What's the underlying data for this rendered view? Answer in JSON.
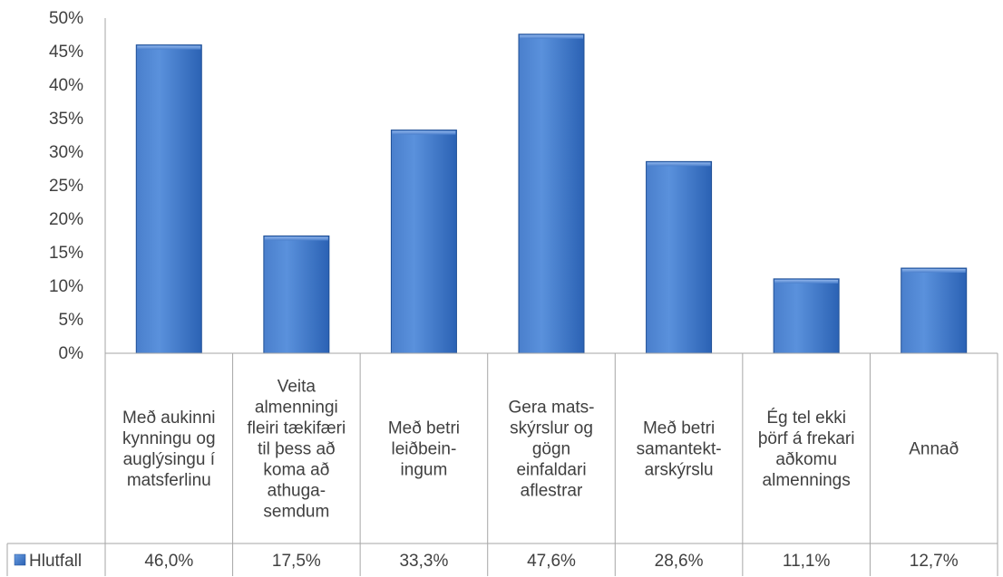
{
  "chart_data": {
    "type": "bar",
    "categories": [
      "Með aukinni kynningu og auglýsingu í matsferlinu",
      "Veita almenningi fleiri tækifæri til þess að koma að athuga-semdum",
      "Með betri leiðbein-ingum",
      "Gera mats-skýrslur og gögn einfaldari aflestrar",
      "Með betri samantekt-arskýrslu",
      "Ég tel ekki þörf á frekari aðkomu almennings",
      "Annað"
    ],
    "category_lines": [
      [
        "Með aukinni",
        "kynningu og",
        "auglýsingu í",
        "matsferlinu"
      ],
      [
        "Veita",
        "almenningi",
        "fleiri tækifæri",
        "til þess að",
        "koma að",
        "athuga-",
        "semdum"
      ],
      [
        "Með betri",
        "leiðbein-",
        "ingum"
      ],
      [
        "Gera mats-",
        "skýrslur og",
        "gögn",
        "einfaldari",
        "aflestrar"
      ],
      [
        "Með betri",
        "samantekt-",
        "arskýrslu"
      ],
      [
        "Ég tel ekki",
        "þörf á frekari",
        "aðkomu",
        "almennings"
      ],
      [
        "Annað"
      ]
    ],
    "series": [
      {
        "name": "Hlutfall",
        "values": [
          46.0,
          17.5,
          33.3,
          47.6,
          28.6,
          11.1,
          12.7
        ],
        "labels": [
          "46,0%",
          "17,5%",
          "33,3%",
          "47,6%",
          "28,6%",
          "11,1%",
          "12,7%"
        ]
      }
    ],
    "yticks": [
      "0%",
      "5%",
      "10%",
      "15%",
      "20%",
      "25%",
      "30%",
      "35%",
      "40%",
      "45%",
      "50%"
    ],
    "ylim": [
      0,
      50
    ],
    "grid": false,
    "legend": "data-table-left",
    "title": "",
    "xlabel": "",
    "ylabel": ""
  },
  "colors": {
    "bar_light": "#5b8fd6",
    "bar_mid": "#3a74c8",
    "bar_dark": "#1f4f96",
    "axis": "#a6a6a6",
    "text": "#404040"
  }
}
